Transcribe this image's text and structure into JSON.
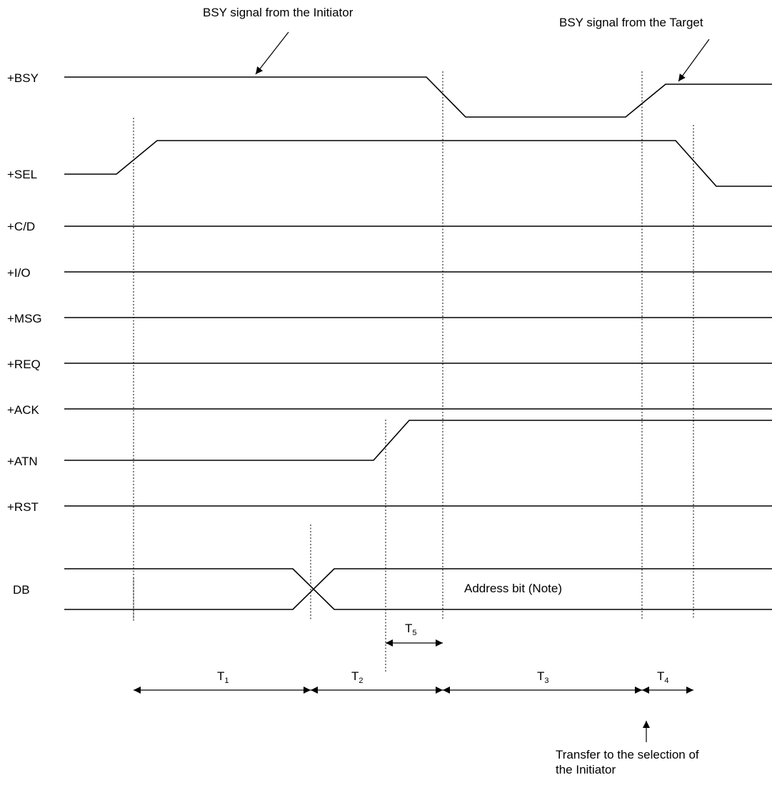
{
  "signals": [
    {
      "id": "bsy",
      "label": "+BSY"
    },
    {
      "id": "sel",
      "label": "+SEL"
    },
    {
      "id": "cd",
      "label": "+C/D"
    },
    {
      "id": "io",
      "label": "+I/O"
    },
    {
      "id": "msg",
      "label": "+MSG"
    },
    {
      "id": "req",
      "label": "+REQ"
    },
    {
      "id": "ack",
      "label": "+ACK"
    },
    {
      "id": "atn",
      "label": "+ATN"
    },
    {
      "id": "rst",
      "label": "+RST"
    },
    {
      "id": "db",
      "label": "DB"
    }
  ],
  "annotations": {
    "bsy_initiator": "BSY signal from the Initiator",
    "bsy_target": "BSY signal from the Target",
    "address_bit": "Address bit (Note)",
    "transfer_line1": "Transfer to the selection of",
    "transfer_line2": "the Initiator"
  },
  "timing_intervals": [
    {
      "main": "T",
      "sub": "1"
    },
    {
      "main": "T",
      "sub": "2"
    },
    {
      "main": "T",
      "sub": "3"
    },
    {
      "main": "T",
      "sub": "4"
    },
    {
      "main": "T",
      "sub": "5"
    }
  ],
  "colors": {
    "line": "#000000",
    "background": "#ffffff"
  }
}
